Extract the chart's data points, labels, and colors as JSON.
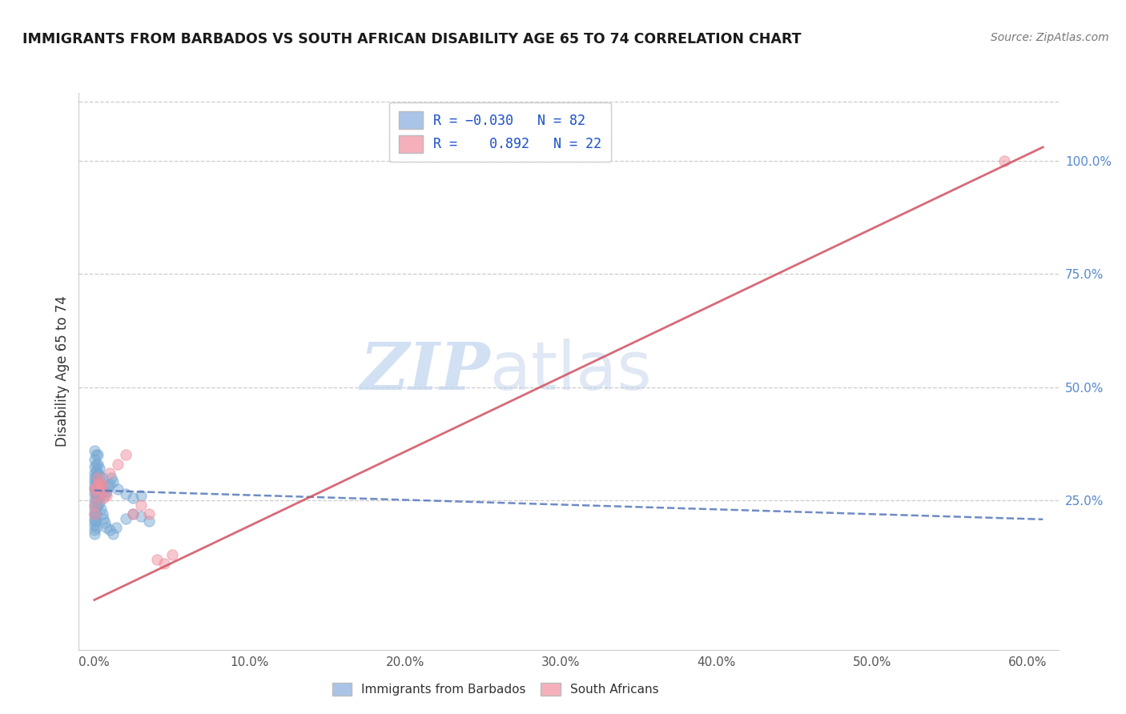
{
  "title": "IMMIGRANTS FROM BARBADOS VS SOUTH AFRICAN DISABILITY AGE 65 TO 74 CORRELATION CHART",
  "source": "Source: ZipAtlas.com",
  "ylabel": "Disability Age 65 to 74",
  "xlabel_ticks": [
    0.0,
    10.0,
    20.0,
    30.0,
    40.0,
    50.0,
    60.0
  ],
  "ylabel_ticks": [
    25.0,
    50.0,
    75.0,
    100.0
  ],
  "xlim": [
    -1.0,
    62.0
  ],
  "ylim": [
    -8,
    115
  ],
  "legend1_label": "R = -0.030   N = 82",
  "legend2_label": "R =  0.892   N = 22",
  "legend1_color": "#aac4e8",
  "legend2_color": "#f5b0bc",
  "watermark_zip": "ZIP",
  "watermark_atlas": "atlas",
  "blue_scatter_x": [
    0.0,
    0.0,
    0.0,
    0.0,
    0.0,
    0.0,
    0.0,
    0.0,
    0.0,
    0.0,
    0.1,
    0.1,
    0.1,
    0.1,
    0.1,
    0.1,
    0.1,
    0.1,
    0.1,
    0.1,
    0.1,
    0.2,
    0.2,
    0.2,
    0.2,
    0.2,
    0.2,
    0.2,
    0.3,
    0.3,
    0.3,
    0.3,
    0.3,
    0.4,
    0.4,
    0.5,
    0.5,
    0.6,
    0.7,
    0.8,
    0.9,
    1.0,
    1.1,
    1.2,
    1.5,
    2.0,
    2.5,
    3.0,
    0.0,
    0.0,
    0.0,
    0.0,
    0.0,
    0.0,
    0.0,
    0.0,
    0.0,
    0.1,
    0.1,
    0.1,
    0.1,
    0.1,
    0.1,
    0.2,
    0.2,
    0.2,
    0.3,
    0.3,
    0.4,
    0.5,
    0.6,
    0.7,
    0.8,
    1.0,
    1.2,
    1.4,
    2.0,
    2.5,
    3.0,
    3.5
  ],
  "blue_scatter_y": [
    28.0,
    30.0,
    22.0,
    26.5,
    27.5,
    29.0,
    31.0,
    32.5,
    34.0,
    36.0,
    26.0,
    27.0,
    28.0,
    29.0,
    30.0,
    31.5,
    33.0,
    35.0,
    26.5,
    28.5,
    30.5,
    26.0,
    27.0,
    28.0,
    29.5,
    31.0,
    33.0,
    35.0,
    27.0,
    28.0,
    29.0,
    30.5,
    32.0,
    27.5,
    29.0,
    28.0,
    30.0,
    27.0,
    26.5,
    27.0,
    28.0,
    28.5,
    30.0,
    29.0,
    27.5,
    26.5,
    25.5,
    26.0,
    21.0,
    22.0,
    23.0,
    24.0,
    25.0,
    19.5,
    18.5,
    20.5,
    17.5,
    19.0,
    20.5,
    22.0,
    23.5,
    25.0,
    26.5,
    24.0,
    25.5,
    27.0,
    25.5,
    24.5,
    23.0,
    22.0,
    21.0,
    20.0,
    19.0,
    18.5,
    17.5,
    19.0,
    21.0,
    22.0,
    21.5,
    20.5
  ],
  "pink_scatter_x": [
    0.0,
    0.0,
    0.0,
    0.1,
    0.1,
    0.2,
    0.2,
    0.3,
    0.4,
    0.5,
    0.6,
    0.8,
    1.0,
    1.5,
    2.0,
    2.5,
    3.0,
    3.5,
    4.0,
    4.5,
    5.0,
    58.5
  ],
  "pink_scatter_y": [
    27.5,
    24.0,
    22.0,
    28.0,
    26.0,
    30.0,
    28.0,
    29.0,
    27.5,
    28.5,
    25.5,
    26.0,
    31.0,
    33.0,
    35.0,
    22.0,
    24.0,
    22.0,
    12.0,
    11.0,
    13.0,
    100.0
  ],
  "blue_line_x": [
    0,
    61
  ],
  "blue_line_y": [
    27.2,
    20.8
  ],
  "pink_line_x": [
    0,
    61
  ],
  "pink_line_y": [
    3.0,
    103.0
  ],
  "scatter_size": 90,
  "blue_color": "#7aaad4",
  "pink_color": "#f090a0",
  "blue_line_color": "#5577bb",
  "pink_line_color": "#d05060",
  "grid_color": "#cccccc",
  "border_color": "#cccccc"
}
